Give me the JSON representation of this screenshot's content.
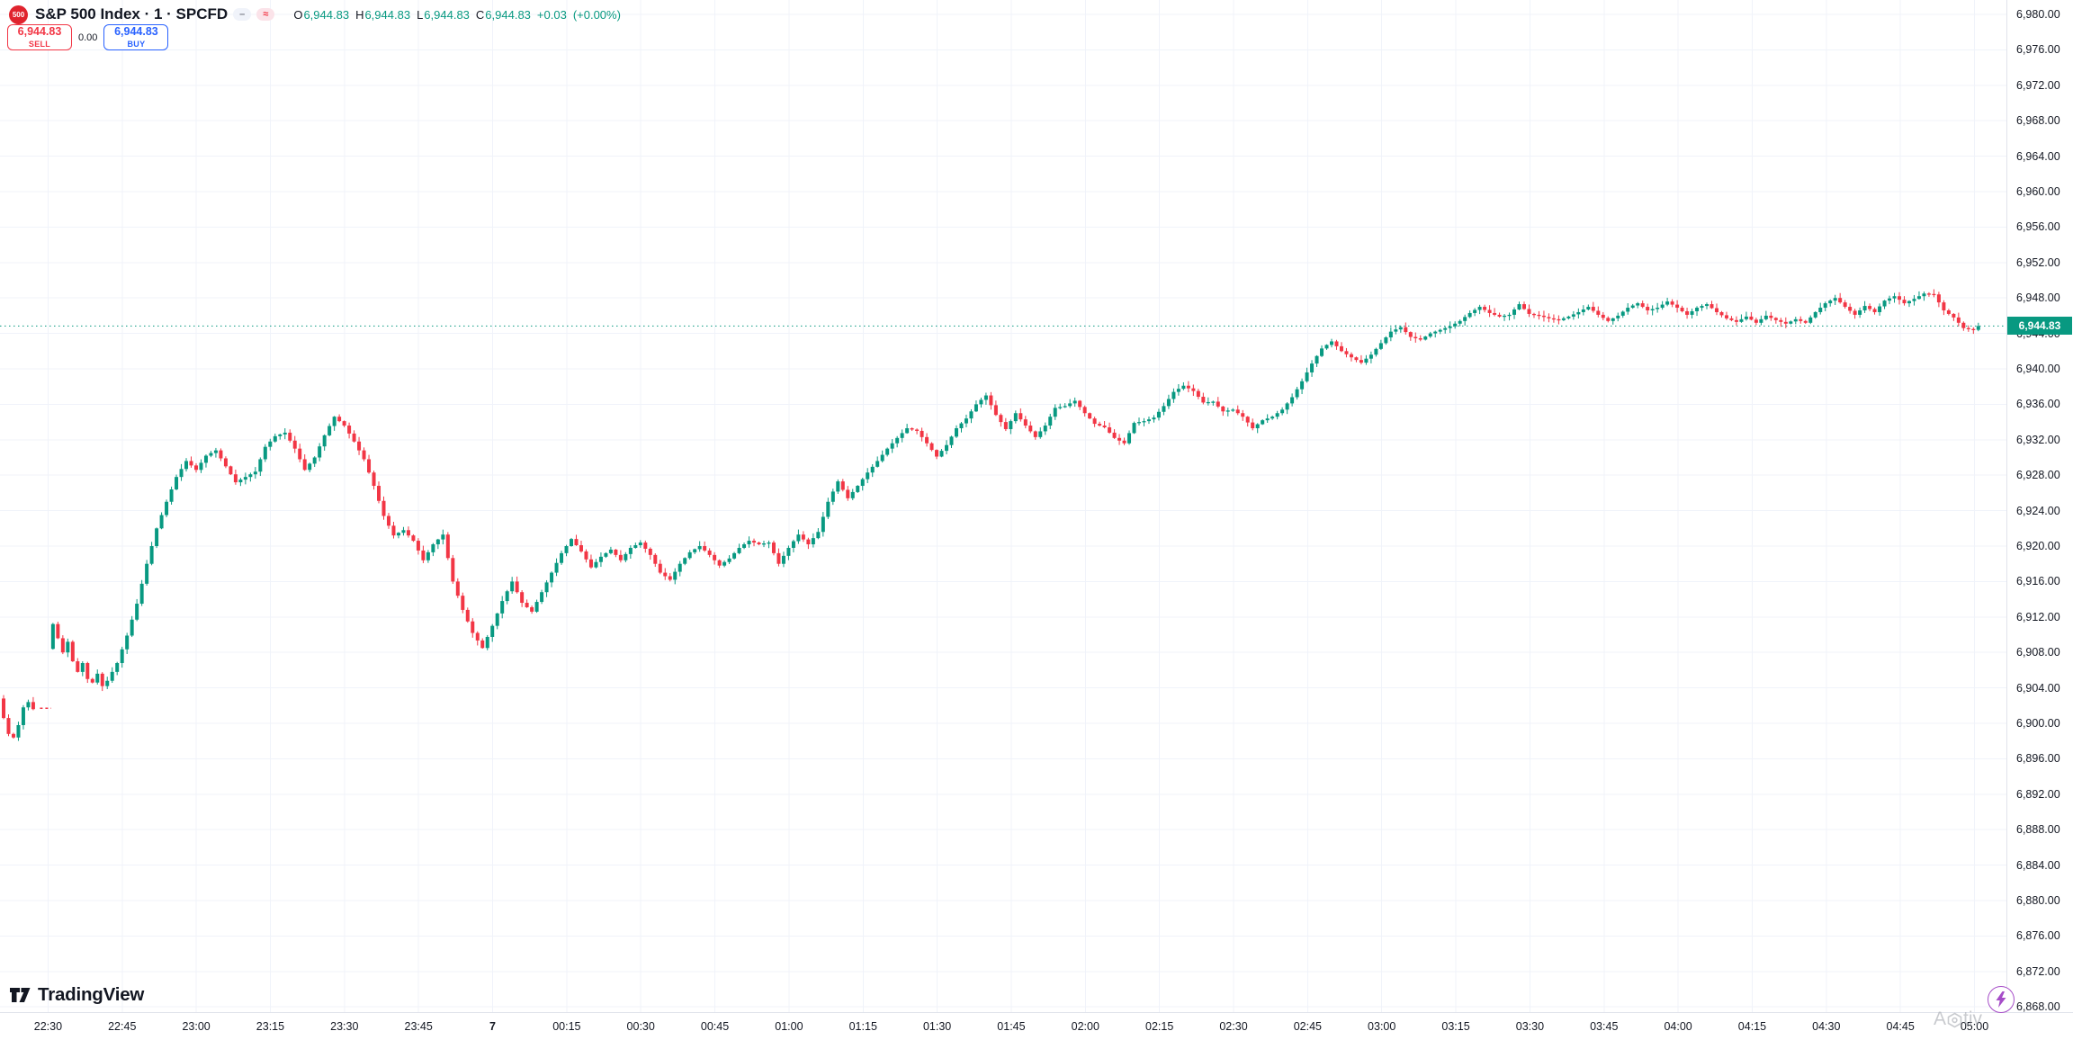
{
  "header": {
    "logo_text": "500",
    "symbol_title": "S&P 500 Index · 1 · SPCFD",
    "pill_minus": "–",
    "pill_approx": "≈",
    "ohlc": {
      "o_label": "O",
      "o": "6,944.83",
      "h_label": "H",
      "h": "6,944.83",
      "l_label": "L",
      "l": "6,944.83",
      "c_label": "C",
      "c": "6,944.83",
      "change": "+0.03",
      "change_pct": "(+0.00%)"
    }
  },
  "trade_panel": {
    "sell_price": "6,944.83",
    "sell_label": "SELL",
    "spread": "0.00",
    "buy_price": "6,944.83",
    "buy_label": "BUY"
  },
  "price_axis": {
    "labels": [
      "6,980.00",
      "6,976.00",
      "6,972.00",
      "6,968.00",
      "6,964.00",
      "6,960.00",
      "6,956.00",
      "6,952.00",
      "6,948.00",
      "6,944.00",
      "6,940.00",
      "6,936.00",
      "6,932.00",
      "6,928.00",
      "6,924.00",
      "6,920.00",
      "6,916.00",
      "6,912.00",
      "6,908.00",
      "6,904.00",
      "6,900.00",
      "6,896.00",
      "6,892.00",
      "6,888.00",
      "6,884.00",
      "6,880.00",
      "6,876.00",
      "6,872.00",
      "6,868.00"
    ],
    "last_price_label": "6,944.83"
  },
  "time_axis": {
    "labels": [
      {
        "label": "22:30",
        "bold": false
      },
      {
        "label": "22:45",
        "bold": false
      },
      {
        "label": "23:00",
        "bold": false
      },
      {
        "label": "23:15",
        "bold": false
      },
      {
        "label": "23:30",
        "bold": false
      },
      {
        "label": "23:45",
        "bold": false
      },
      {
        "label": "7",
        "bold": true
      },
      {
        "label": "00:15",
        "bold": false
      },
      {
        "label": "00:30",
        "bold": false
      },
      {
        "label": "00:45",
        "bold": false
      },
      {
        "label": "01:00",
        "bold": false
      },
      {
        "label": "01:15",
        "bold": false
      },
      {
        "label": "01:30",
        "bold": false
      },
      {
        "label": "01:45",
        "bold": false
      },
      {
        "label": "02:00",
        "bold": false
      },
      {
        "label": "02:15",
        "bold": false
      },
      {
        "label": "02:30",
        "bold": false
      },
      {
        "label": "02:45",
        "bold": false
      },
      {
        "label": "03:00",
        "bold": false
      },
      {
        "label": "03:15",
        "bold": false
      },
      {
        "label": "03:30",
        "bold": false
      },
      {
        "label": "03:45",
        "bold": false
      },
      {
        "label": "04:00",
        "bold": false
      },
      {
        "label": "04:15",
        "bold": false
      },
      {
        "label": "04:30",
        "bold": false
      },
      {
        "label": "04:45",
        "bold": false
      },
      {
        "label": "05:00",
        "bold": false
      }
    ]
  },
  "chart_data": {
    "type": "candlestick",
    "symbol": "SPCFD",
    "title": "S&P 500 Index",
    "interval_minutes": 1,
    "start_time": "22:21",
    "end_time": "05:03",
    "visible_price_range": [
      6866.0,
      6981.5
    ],
    "price_grid_step": 4,
    "last_price": 6944.83,
    "change": 0.03,
    "change_pct": 0.0,
    "up_color": "#089981",
    "down_color": "#f23645",
    "grid_color": "#f0f3fa",
    "session_gap": {
      "from_minute": 7,
      "to_minute": 10,
      "price": 6901.7
    },
    "anchors_format": "[minute_offset_from_22:21, price]",
    "anchors": [
      [
        0,
        6902.8
      ],
      [
        1,
        6900.6
      ],
      [
        2,
        6898.8
      ],
      [
        3,
        6898.4
      ],
      [
        4,
        6899.8
      ],
      [
        5,
        6901.8
      ],
      [
        6,
        6902.4
      ],
      [
        7,
        6901.6
      ],
      [
        10,
        6908.4
      ],
      [
        11,
        6911.2
      ],
      [
        12,
        6909.6
      ],
      [
        13,
        6908.0
      ],
      [
        14,
        6909.2
      ],
      [
        15,
        6907.0
      ],
      [
        16,
        6905.8
      ],
      [
        17,
        6906.8
      ],
      [
        18,
        6905.0
      ],
      [
        19,
        6904.6
      ],
      [
        20,
        6905.6
      ],
      [
        21,
        6904.2
      ],
      [
        22,
        6904.8
      ],
      [
        24,
        6906.8
      ],
      [
        26,
        6909.9
      ],
      [
        28,
        6913.5
      ],
      [
        30,
        6918.0
      ],
      [
        32,
        6922.0
      ],
      [
        34,
        6925.0
      ],
      [
        36,
        6927.8
      ],
      [
        38,
        6929.6
      ],
      [
        40,
        6928.6
      ],
      [
        42,
        6930.2
      ],
      [
        44,
        6930.8
      ],
      [
        46,
        6929.0
      ],
      [
        48,
        6927.2
      ],
      [
        50,
        6927.8
      ],
      [
        52,
        6928.4
      ],
      [
        54,
        6931.2
      ],
      [
        56,
        6932.4
      ],
      [
        58,
        6932.8
      ],
      [
        60,
        6931.0
      ],
      [
        62,
        6928.6
      ],
      [
        64,
        6930.0
      ],
      [
        66,
        6932.5
      ],
      [
        68,
        6934.6
      ],
      [
        70,
        6933.6
      ],
      [
        72,
        6931.8
      ],
      [
        74,
        6929.8
      ],
      [
        76,
        6926.8
      ],
      [
        78,
        6923.4
      ],
      [
        80,
        6921.2
      ],
      [
        82,
        6921.8
      ],
      [
        84,
        6920.6
      ],
      [
        86,
        6918.4
      ],
      [
        88,
        6920.2
      ],
      [
        90,
        6921.3
      ],
      [
        92,
        6916.0
      ],
      [
        94,
        6912.8
      ],
      [
        96,
        6910.2
      ],
      [
        98,
        6908.5
      ],
      [
        100,
        6911.0
      ],
      [
        102,
        6913.8
      ],
      [
        104,
        6916.0
      ],
      [
        106,
        6913.6
      ],
      [
        108,
        6912.6
      ],
      [
        110,
        6914.8
      ],
      [
        112,
        6917.0
      ],
      [
        114,
        6919.2
      ],
      [
        116,
        6920.8
      ],
      [
        118,
        6919.4
      ],
      [
        120,
        6917.6
      ],
      [
        122,
        6918.8
      ],
      [
        124,
        6919.6
      ],
      [
        126,
        6918.4
      ],
      [
        128,
        6919.8
      ],
      [
        130,
        6920.4
      ],
      [
        132,
        6919.0
      ],
      [
        134,
        6917.0
      ],
      [
        136,
        6916.2
      ],
      [
        138,
        6918.0
      ],
      [
        140,
        6919.3
      ],
      [
        142,
        6920.0
      ],
      [
        144,
        6919.0
      ],
      [
        146,
        6917.8
      ],
      [
        148,
        6918.6
      ],
      [
        150,
        6919.8
      ],
      [
        152,
        6920.6
      ],
      [
        154,
        6920.2
      ],
      [
        156,
        6920.4
      ],
      [
        158,
        6918.0
      ],
      [
        160,
        6919.8
      ],
      [
        162,
        6921.3
      ],
      [
        164,
        6920.2
      ],
      [
        166,
        6921.6
      ],
      [
        168,
        6925.0
      ],
      [
        170,
        6927.3
      ],
      [
        172,
        6925.4
      ],
      [
        174,
        6926.8
      ],
      [
        176,
        6928.3
      ],
      [
        178,
        6929.6
      ],
      [
        180,
        6931.0
      ],
      [
        182,
        6932.2
      ],
      [
        184,
        6933.3
      ],
      [
        186,
        6933.0
      ],
      [
        188,
        6931.6
      ],
      [
        190,
        6930.1
      ],
      [
        192,
        6931.4
      ],
      [
        194,
        6933.3
      ],
      [
        196,
        6934.4
      ],
      [
        198,
        6936.0
      ],
      [
        200,
        6937.0
      ],
      [
        202,
        6934.8
      ],
      [
        204,
        6933.2
      ],
      [
        206,
        6935.0
      ],
      [
        208,
        6933.6
      ],
      [
        210,
        6932.3
      ],
      [
        212,
        6933.6
      ],
      [
        214,
        6935.6
      ],
      [
        216,
        6935.8
      ],
      [
        218,
        6936.4
      ],
      [
        220,
        6935.0
      ],
      [
        222,
        6933.8
      ],
      [
        224,
        6933.4
      ],
      [
        226,
        6932.2
      ],
      [
        228,
        6931.6
      ],
      [
        230,
        6933.9
      ],
      [
        232,
        6934.1
      ],
      [
        234,
        6934.5
      ],
      [
        236,
        6935.8
      ],
      [
        238,
        6937.4
      ],
      [
        240,
        6938.1
      ],
      [
        242,
        6937.5
      ],
      [
        244,
        6936.2
      ],
      [
        246,
        6936.3
      ],
      [
        248,
        6935.2
      ],
      [
        250,
        6935.4
      ],
      [
        252,
        6934.6
      ],
      [
        254,
        6933.3
      ],
      [
        256,
        6934.2
      ],
      [
        258,
        6934.6
      ],
      [
        260,
        6935.4
      ],
      [
        262,
        6936.8
      ],
      [
        264,
        6938.6
      ],
      [
        266,
        6940.6
      ],
      [
        268,
        6942.3
      ],
      [
        270,
        6943.1
      ],
      [
        272,
        6942.0
      ],
      [
        274,
        6941.3
      ],
      [
        276,
        6940.7
      ],
      [
        278,
        6941.6
      ],
      [
        280,
        6942.9
      ],
      [
        282,
        6944.2
      ],
      [
        284,
        6944.7
      ],
      [
        286,
        6943.6
      ],
      [
        288,
        6943.3
      ],
      [
        290,
        6944.0
      ],
      [
        292,
        6944.4
      ],
      [
        294,
        6944.8
      ],
      [
        296,
        6945.4
      ],
      [
        298,
        6946.3
      ],
      [
        300,
        6947.0
      ],
      [
        302,
        6946.3
      ],
      [
        304,
        6945.9
      ],
      [
        306,
        6946.1
      ],
      [
        308,
        6947.3
      ],
      [
        310,
        6946.2
      ],
      [
        312,
        6946.0
      ],
      [
        314,
        6945.7
      ],
      [
        316,
        6945.5
      ],
      [
        318,
        6945.9
      ],
      [
        320,
        6946.4
      ],
      [
        322,
        6947.0
      ],
      [
        324,
        6946.1
      ],
      [
        326,
        6945.4
      ],
      [
        328,
        6946.0
      ],
      [
        330,
        6946.9
      ],
      [
        332,
        6947.4
      ],
      [
        334,
        6946.6
      ],
      [
        336,
        6946.9
      ],
      [
        338,
        6947.6
      ],
      [
        340,
        6946.9
      ],
      [
        342,
        6946.1
      ],
      [
        344,
        6946.9
      ],
      [
        346,
        6947.3
      ],
      [
        348,
        6946.4
      ],
      [
        350,
        6945.7
      ],
      [
        352,
        6945.3
      ],
      [
        354,
        6945.9
      ],
      [
        356,
        6945.2
      ],
      [
        358,
        6946.0
      ],
      [
        360,
        6945.5
      ],
      [
        362,
        6945.1
      ],
      [
        364,
        6945.6
      ],
      [
        366,
        6945.2
      ],
      [
        368,
        6946.4
      ],
      [
        370,
        6947.4
      ],
      [
        372,
        6948.0
      ],
      [
        374,
        6947.0
      ],
      [
        376,
        6946.1
      ],
      [
        378,
        6947.1
      ],
      [
        380,
        6946.4
      ],
      [
        382,
        6947.7
      ],
      [
        384,
        6948.2
      ],
      [
        386,
        6947.4
      ],
      [
        388,
        6947.9
      ],
      [
        390,
        6948.5
      ],
      [
        392,
        6948.4
      ],
      [
        394,
        6946.6
      ],
      [
        396,
        6945.8
      ],
      [
        398,
        6944.6
      ],
      [
        400,
        6944.4
      ],
      [
        401,
        6944.83
      ]
    ]
  },
  "branding": {
    "logo": "TradingView"
  },
  "watermark": {
    "prefix": "A",
    "suffix": "tiv"
  },
  "colors": {
    "up": "#089981",
    "down": "#f23645",
    "buy": "#2962ff",
    "sell": "#f23645",
    "last_price_tag": "#089981",
    "logo_red": "#e0242e",
    "lightning_purple": "#a64dc8",
    "grid": "#f0f3fa",
    "text": "#131722"
  }
}
